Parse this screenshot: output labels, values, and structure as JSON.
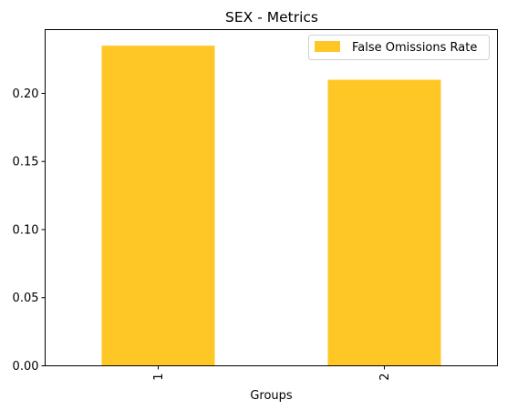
{
  "chart_data": {
    "type": "bar",
    "title": "SEX - Metrics",
    "xlabel": "Groups",
    "ylabel": "",
    "categories": [
      "1",
      "2"
    ],
    "series": [
      {
        "name": "False Omissions Rate",
        "values": [
          0.235,
          0.21
        ],
        "color": "#ffc726"
      }
    ],
    "ylim": [
      0,
      0.2468
    ],
    "yticks": [
      0.0,
      0.05,
      0.1,
      0.15,
      0.2
    ],
    "ytick_labels": [
      "0.00",
      "0.05",
      "0.10",
      "0.15",
      "0.20"
    ],
    "xtick_rotation": "vertical",
    "grid": false,
    "legend_position": "top-right"
  }
}
